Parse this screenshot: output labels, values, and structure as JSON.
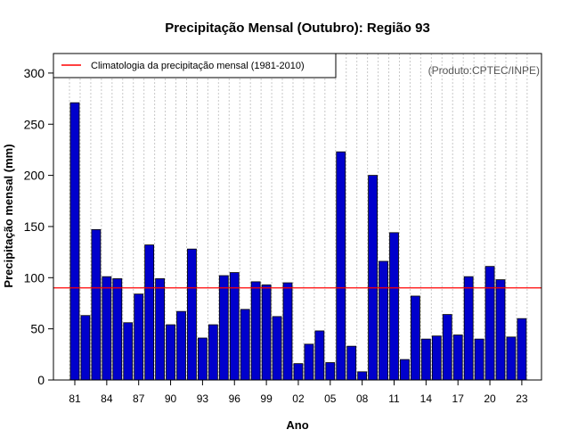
{
  "chart_data": {
    "type": "bar",
    "title": "Precipitação Mensal (Outubro): Região 93",
    "xlabel": "Ano",
    "ylabel": "Precipitação mensal (mm)",
    "credit": "(Produto:CPTEC/INPE)",
    "legend": {
      "label": "Climatologia da precipitação mensal (1981-2010)",
      "placement": "top-left"
    },
    "climatology": 90,
    "ylim": [
      0,
      320
    ],
    "yticks": [
      0,
      50,
      100,
      150,
      200,
      250,
      300
    ],
    "categories": [
      "1981",
      "1982",
      "1983",
      "1984",
      "1985",
      "1986",
      "1987",
      "1988",
      "1989",
      "1990",
      "1991",
      "1992",
      "1993",
      "1994",
      "1995",
      "1996",
      "1997",
      "1998",
      "1999",
      "2000",
      "2001",
      "2002",
      "2003",
      "2004",
      "2005",
      "2006",
      "2007",
      "2008",
      "2009",
      "2010",
      "2011",
      "2012",
      "2013",
      "2014",
      "2015",
      "2016",
      "2017",
      "2018",
      "2019",
      "2020",
      "2021",
      "2022",
      "2023"
    ],
    "values": [
      271,
      63,
      147,
      101,
      99,
      56,
      84,
      132,
      99,
      54,
      67,
      128,
      41,
      54,
      102,
      105,
      69,
      96,
      93,
      62,
      95,
      16,
      35,
      48,
      17,
      223,
      33,
      8,
      200,
      116,
      144,
      20,
      82,
      40,
      43,
      64,
      44,
      101,
      40,
      111,
      98,
      42,
      60
    ],
    "xtick_labels": [
      "81",
      "84",
      "87",
      "90",
      "93",
      "96",
      "99",
      "02",
      "05",
      "08",
      "11",
      "14",
      "17",
      "20",
      "23"
    ],
    "colors": {
      "bar": "#0000cc",
      "climatology_line": "#ff0000",
      "grid": "#c8c8c8"
    }
  }
}
